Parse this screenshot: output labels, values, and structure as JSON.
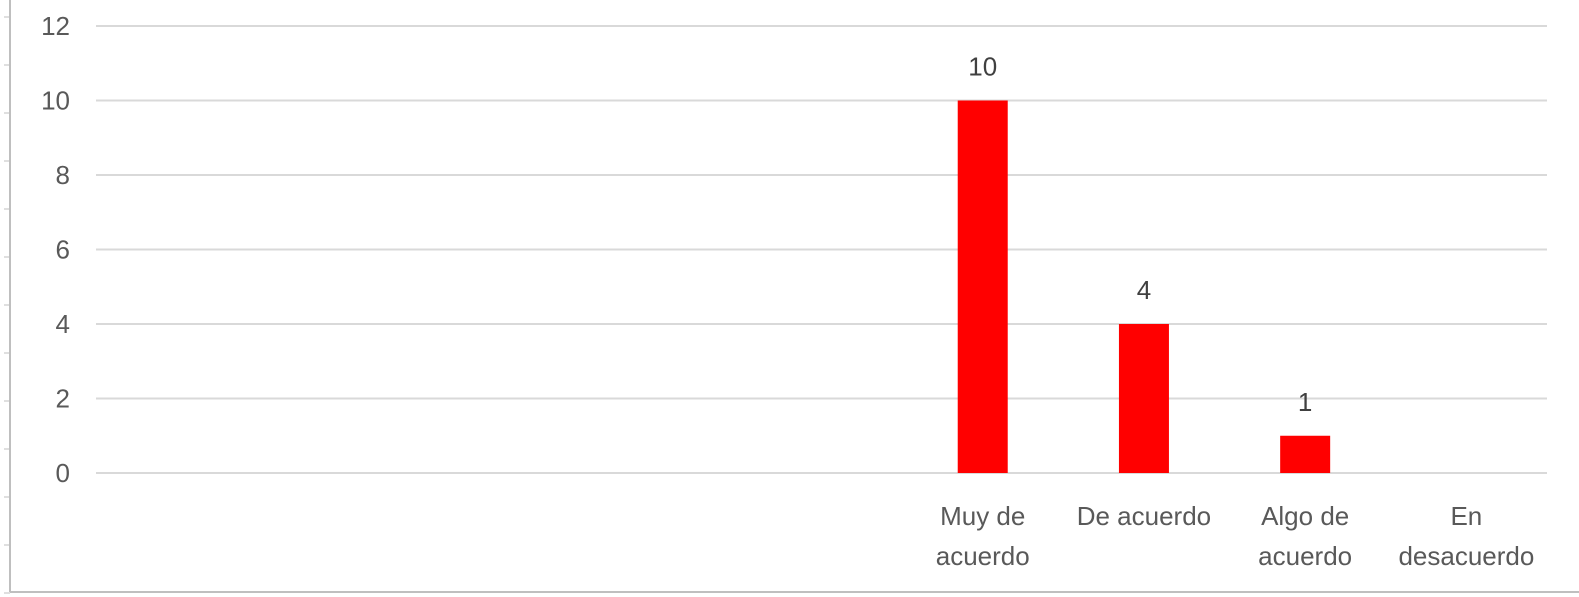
{
  "chart_data": {
    "type": "bar",
    "categories": [
      "",
      "",
      "",
      "",
      "",
      "Muy de acuerdo",
      "De acuerdo",
      "Algo de acuerdo",
      "En desacuerdo"
    ],
    "category_lines": [
      [],
      [],
      [],
      [],
      [],
      [
        "Muy de",
        "acuerdo"
      ],
      [
        "De acuerdo"
      ],
      [
        "Algo de",
        "acuerdo"
      ],
      [
        "En",
        "desacuerdo"
      ]
    ],
    "values": [
      null,
      null,
      null,
      null,
      null,
      10,
      4,
      1,
      null
    ],
    "data_labels": [
      "",
      "",
      "",
      "",
      "",
      "10",
      "4",
      "1",
      ""
    ],
    "title": "",
    "xlabel": "",
    "ylabel": "",
    "ylim": [
      0,
      12
    ],
    "yticks": [
      0,
      2,
      4,
      6,
      8,
      10,
      12
    ],
    "grid": true,
    "legend": "none",
    "colors": {
      "bar": "#FF0000",
      "grid": "#D9D9D9",
      "text": "#595959",
      "data_label": "#404040",
      "frame": "#BFBFBF"
    }
  }
}
